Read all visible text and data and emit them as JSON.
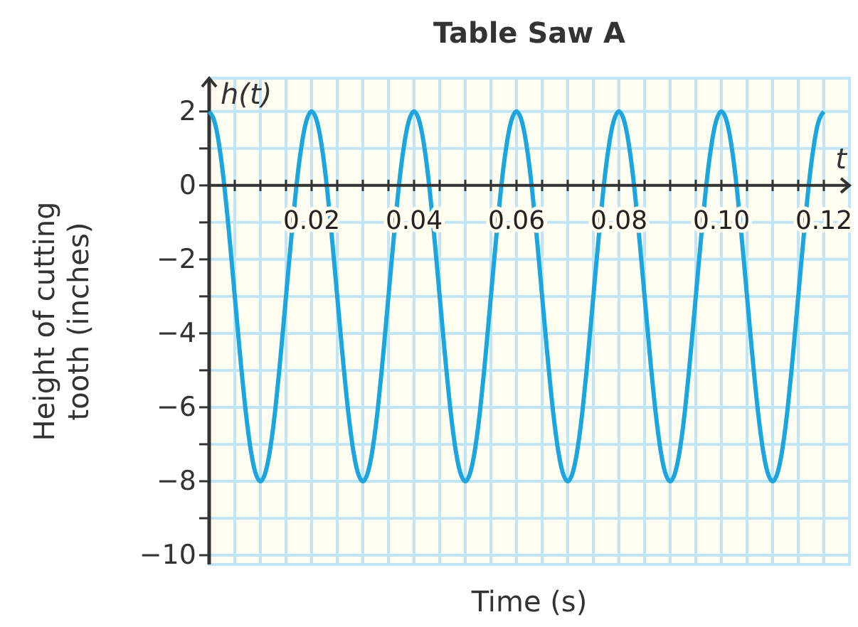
{
  "chart_data": {
    "type": "line",
    "title": "Table Saw A",
    "xlabel": "Time (s)",
    "ylabel": "Height of cutting tooth (inches)",
    "annotations": [
      "h(t)",
      "t"
    ],
    "xlim": [
      0,
      0.125
    ],
    "ylim": [
      -10.25,
      2.9
    ],
    "xticks": [
      {
        "value": 0.005,
        "label": null
      },
      {
        "value": 0.01,
        "label": null
      },
      {
        "value": 0.015,
        "label": null
      },
      {
        "value": 0.02,
        "label": "0.02"
      },
      {
        "value": 0.025,
        "label": null
      },
      {
        "value": 0.03,
        "label": null
      },
      {
        "value": 0.035,
        "label": null
      },
      {
        "value": 0.04,
        "label": "0.04"
      },
      {
        "value": 0.045,
        "label": null
      },
      {
        "value": 0.05,
        "label": null
      },
      {
        "value": 0.055,
        "label": null
      },
      {
        "value": 0.06,
        "label": "0.06"
      },
      {
        "value": 0.065,
        "label": null
      },
      {
        "value": 0.07,
        "label": null
      },
      {
        "value": 0.075,
        "label": null
      },
      {
        "value": 0.08,
        "label": "0.08"
      },
      {
        "value": 0.085,
        "label": null
      },
      {
        "value": 0.09,
        "label": null
      },
      {
        "value": 0.095,
        "label": null
      },
      {
        "value": 0.1,
        "label": "0.10"
      },
      {
        "value": 0.105,
        "label": null
      },
      {
        "value": 0.11,
        "label": null
      },
      {
        "value": 0.115,
        "label": null
      },
      {
        "value": 0.12,
        "label": "0.12"
      }
    ],
    "yticks": [
      2,
      {
        "value": 1,
        "label": null
      },
      0,
      {
        "value": -1,
        "label": null
      },
      {
        "value": -2,
        "label": "−2"
      },
      {
        "value": -3,
        "label": null
      },
      {
        "value": -4,
        "label": "−4"
      },
      {
        "value": -5,
        "label": null
      },
      {
        "value": -6,
        "label": "−6"
      },
      {
        "value": -7,
        "label": null
      },
      {
        "value": -8,
        "label": "−8"
      },
      {
        "value": -9,
        "label": null
      },
      {
        "value": -10,
        "label": "−10"
      }
    ],
    "grid": true,
    "marker": "none",
    "line_style": "solid",
    "series": [
      {
        "color": "#1ba6e0",
        "x": [
          0,
          0.00125,
          0.0025,
          0.00375,
          0.005,
          0.00625,
          0.0075,
          0.00875,
          0.01,
          0.01125,
          0.0125,
          0.01375,
          0.015,
          0.01625,
          0.0175,
          0.01875,
          0.02,
          0.02125,
          0.0225,
          0.02375,
          0.025,
          0.02625,
          0.0275,
          0.02875,
          0.03,
          0.03125,
          0.0325,
          0.03375,
          0.035,
          0.03625,
          0.0375,
          0.03875,
          0.04,
          0.04125,
          0.0425,
          0.04375,
          0.045,
          0.04625,
          0.0475,
          0.04875,
          0.05,
          0.05125,
          0.0525,
          0.05375,
          0.055,
          0.05625,
          0.0575,
          0.05875,
          0.06,
          0.06125,
          0.0625,
          0.06375,
          0.065,
          0.06625,
          0.0675,
          0.06875,
          0.07,
          0.07125,
          0.0725,
          0.07375,
          0.075,
          0.07625,
          0.0775,
          0.07875,
          0.08,
          0.08125,
          0.0825,
          0.08375,
          0.085,
          0.08625,
          0.0875,
          0.08875,
          0.09,
          0.09125,
          0.0925,
          0.09375,
          0.095,
          0.09625,
          0.0975,
          0.09875,
          0.1,
          0.10125,
          0.1025,
          0.10375,
          0.105,
          0.10625,
          0.1075,
          0.10875,
          0.11,
          0.11125,
          0.1125,
          0.11375,
          0.115,
          0.11625,
          0.1175,
          0.11875,
          0.12
        ],
        "values": [
          2,
          1.62,
          0.54,
          -1.09,
          -3,
          -4.91,
          -6.54,
          -7.62,
          -8,
          -7.62,
          -6.54,
          -4.91,
          -3,
          -1.09,
          0.54,
          1.62,
          2,
          1.62,
          0.54,
          -1.09,
          -3,
          -4.91,
          -6.54,
          -7.62,
          -8,
          -7.62,
          -6.54,
          -4.91,
          -3,
          -1.09,
          0.54,
          1.62,
          2,
          1.62,
          0.54,
          -1.09,
          -3,
          -4.91,
          -6.54,
          -7.62,
          -8,
          -7.62,
          -6.54,
          -4.91,
          -3,
          -1.09,
          0.54,
          1.62,
          2,
          1.62,
          0.54,
          -1.09,
          -3,
          -4.91,
          -6.54,
          -7.62,
          -8,
          -7.62,
          -6.54,
          -4.91,
          -3,
          -1.09,
          0.54,
          1.62,
          2,
          1.62,
          0.54,
          -1.09,
          -3,
          -4.91,
          -6.54,
          -7.62,
          -8,
          -7.62,
          -6.54,
          -4.91,
          -3,
          -1.09,
          0.54,
          1.62,
          2,
          1.62,
          0.54,
          -1.09,
          -3,
          -4.91,
          -6.54,
          -7.62,
          -8,
          -7.62,
          -6.54,
          -4.91,
          -3,
          -1.09,
          0.54,
          1.62,
          2
        ]
      }
    ]
  }
}
